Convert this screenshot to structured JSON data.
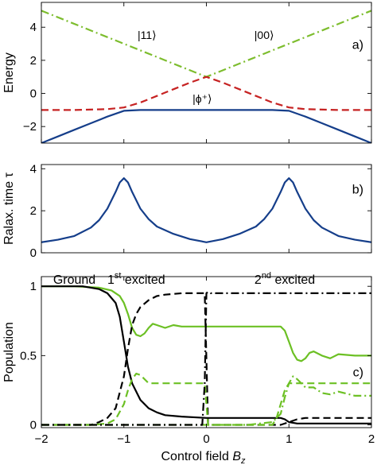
{
  "chart_data": [
    {
      "type": "line",
      "panel_label": "a)",
      "ylabel": "Energy",
      "xlim": [
        -2,
        2
      ],
      "ylim": [
        -3,
        5.5
      ],
      "yticks": [
        -2,
        0,
        2,
        4
      ],
      "annotations": [
        {
          "text": "|11⟩",
          "x": -0.72,
          "y": 3.3
        },
        {
          "text": "|00⟩",
          "x": 0.7,
          "y": 3.3
        },
        {
          "text": "|ϕ⁺⟩",
          "x": -0.05,
          "y": -0.55
        }
      ],
      "series": [
        {
          "color": "#7dbd2e",
          "dash": "dashdot",
          "x": [
            -2,
            0,
            2
          ],
          "y": [
            5,
            1,
            5
          ]
        },
        {
          "color": "#c62222",
          "dash": "dash",
          "x": [
            -2,
            -1.6,
            -1.2,
            -1.0,
            -0.8,
            -0.6,
            -0.4,
            -0.2,
            0,
            0.2,
            0.4,
            0.6,
            0.8,
            1.0,
            1.2,
            1.6,
            2
          ],
          "y": [
            -1,
            -1,
            -0.95,
            -0.85,
            -0.55,
            -0.15,
            0.25,
            0.65,
            1,
            0.65,
            0.25,
            -0.15,
            -0.55,
            -0.85,
            -0.95,
            -1,
            -1
          ]
        },
        {
          "color": "#153e8a",
          "dash": "solid",
          "x": [
            -2,
            -1.8,
            -1.6,
            -1.4,
            -1.2,
            -1.0,
            -0.8,
            -0.5,
            0,
            0.5,
            0.8,
            1.0,
            1.2,
            1.4,
            1.6,
            1.8,
            2
          ],
          "y": [
            -3,
            -2.6,
            -2.2,
            -1.8,
            -1.4,
            -1.05,
            -1.0,
            -1.0,
            -1.0,
            -1.0,
            -1.0,
            -1.05,
            -1.4,
            -1.8,
            -2.2,
            -2.6,
            -3
          ]
        }
      ]
    },
    {
      "type": "line",
      "panel_label": "b)",
      "ylabel": "Ralax. time τ",
      "xlim": [
        -2,
        2
      ],
      "ylim": [
        0,
        4.2
      ],
      "yticks": [
        0,
        2,
        4
      ],
      "series": [
        {
          "color": "#153e8a",
          "dash": "solid",
          "x": [
            -2,
            -1.8,
            -1.6,
            -1.4,
            -1.3,
            -1.2,
            -1.1,
            -1.05,
            -1.0,
            -0.95,
            -0.9,
            -0.8,
            -0.7,
            -0.6,
            -0.4,
            -0.2,
            0,
            0.2,
            0.4,
            0.6,
            0.7,
            0.8,
            0.9,
            0.95,
            1.0,
            1.05,
            1.1,
            1.2,
            1.3,
            1.4,
            1.6,
            1.8,
            2
          ],
          "y": [
            0.5,
            0.62,
            0.8,
            1.2,
            1.55,
            2.1,
            2.9,
            3.35,
            3.55,
            3.35,
            2.9,
            2.1,
            1.6,
            1.25,
            0.9,
            0.65,
            0.5,
            0.65,
            0.9,
            1.25,
            1.6,
            2.1,
            2.9,
            3.35,
            3.55,
            3.35,
            2.9,
            2.1,
            1.55,
            1.2,
            0.8,
            0.62,
            0.5
          ]
        }
      ]
    },
    {
      "type": "line",
      "panel_label": "c)",
      "ylabel": "Population",
      "xlabel": "Control field B_z",
      "xlabel_main": "Control field ",
      "xlabel_sym": "B",
      "xlabel_sub": "z",
      "xlim": [
        -2,
        2
      ],
      "ylim": [
        -0.02,
        1.07
      ],
      "xticks": [
        -2,
        -1,
        0,
        1,
        2
      ],
      "xtick_labels": [
        "−2",
        "−1",
        "0",
        "1",
        "2"
      ],
      "yticks": [
        0,
        0.5,
        1
      ],
      "ytick_labels": [
        "0",
        "0.5",
        "1"
      ],
      "region_labels": [
        {
          "text": "Ground",
          "x": -1.6
        },
        {
          "text": "1",
          "sup": "st",
          "rest": " excited",
          "x": -0.85
        },
        {
          "text": "2",
          "sup": "nd",
          "rest": " excited",
          "x": 0.95
        }
      ],
      "series": [
        {
          "color": "#6cc024",
          "dash": "solid",
          "x": [
            -2,
            -1.6,
            -1.3,
            -1.15,
            -1.05,
            -1.0,
            -0.95,
            -0.9,
            -0.85,
            -0.8,
            -0.75,
            -0.7,
            -0.65,
            -0.6,
            -0.5,
            -0.4,
            -0.3,
            0,
            0.5,
            0.9,
            0.95,
            1.0,
            1.05,
            1.1,
            1.15,
            1.2,
            1.25,
            1.3,
            1.4,
            1.5,
            1.6,
            1.8,
            2
          ],
          "y": [
            1,
            1,
            0.99,
            0.97,
            0.93,
            0.88,
            0.8,
            0.7,
            0.65,
            0.64,
            0.66,
            0.7,
            0.73,
            0.72,
            0.7,
            0.72,
            0.71,
            0.71,
            0.71,
            0.71,
            0.68,
            0.6,
            0.52,
            0.47,
            0.46,
            0.48,
            0.52,
            0.53,
            0.5,
            0.48,
            0.51,
            0.5,
            0.5
          ]
        },
        {
          "color": "#000000",
          "dash": "solid",
          "x": [
            -2,
            -1.5,
            -1.3,
            -1.2,
            -1.1,
            -1.05,
            -1.0,
            -0.95,
            -0.9,
            -0.8,
            -0.7,
            -0.6,
            -0.5,
            -0.3,
            0,
            0.5,
            0.9,
            0.95,
            1.0,
            1.1,
            1.2,
            1.5,
            2
          ],
          "y": [
            1,
            1,
            0.98,
            0.95,
            0.88,
            0.78,
            0.6,
            0.42,
            0.3,
            0.18,
            0.12,
            0.09,
            0.07,
            0.06,
            0.05,
            0.05,
            0.05,
            0.04,
            0.02,
            0.01,
            0.01,
            0.01,
            0.01
          ]
        },
        {
          "color": "#000000",
          "dash": "dash",
          "x": [
            -2,
            -1.4,
            -1.3,
            -1.2,
            -1.1,
            -1.0,
            -0.95,
            -0.9,
            -0.85,
            -0.8,
            -0.7,
            -0.6,
            -0.5,
            -0.3,
            -0.02,
            0.02,
            0.9,
            1.0,
            1.1,
            1.2,
            1.5,
            2
          ],
          "y": [
            0,
            0,
            0.02,
            0.05,
            0.12,
            0.35,
            0.55,
            0.72,
            0.8,
            0.85,
            0.9,
            0.93,
            0.94,
            0.95,
            0.95,
            0,
            0,
            0.02,
            0.04,
            0.05,
            0.05,
            0.05
          ]
        },
        {
          "color": "#6cc024",
          "dash": "dash",
          "x": [
            -2,
            -1.4,
            -1.2,
            -1.1,
            -1.0,
            -0.95,
            -0.9,
            -0.85,
            -0.8,
            -0.75,
            -0.7,
            -0.6,
            -0.5,
            -0.3,
            -0.02,
            0.02,
            0.8,
            0.85,
            0.9,
            0.95,
            1.0,
            1.2,
            1.5,
            2
          ],
          "y": [
            0,
            0,
            0.01,
            0.04,
            0.15,
            0.25,
            0.33,
            0.37,
            0.36,
            0.33,
            0.3,
            0.3,
            0.3,
            0.3,
            0.3,
            0,
            0,
            0.05,
            0.15,
            0.25,
            0.3,
            0.3,
            0.3,
            0.3
          ]
        },
        {
          "color": "#6cc024",
          "dash": "dashdot",
          "x": [
            -2,
            -0.02,
            0.02,
            0.5,
            0.8,
            0.9,
            0.95,
            1.0,
            1.05,
            1.1,
            1.2,
            1.3,
            1.4,
            1.5,
            1.6,
            1.8,
            2
          ],
          "y": [
            0,
            0,
            0,
            0,
            0.02,
            0.08,
            0.2,
            0.3,
            0.35,
            0.33,
            0.27,
            0.27,
            0.23,
            0.22,
            0.24,
            0.21,
            0.21
          ]
        },
        {
          "color": "#000000",
          "dash": "dashdot",
          "x": [
            -2,
            -0.05,
            -0.02,
            0,
            0.02,
            0.05,
            0.1,
            0.2,
            0.5,
            1,
            2
          ],
          "y": [
            0,
            0,
            0.3,
            0.95,
            0.96,
            0.95,
            0.95,
            0.95,
            0.95,
            0.95,
            0.95
          ]
        }
      ]
    }
  ]
}
